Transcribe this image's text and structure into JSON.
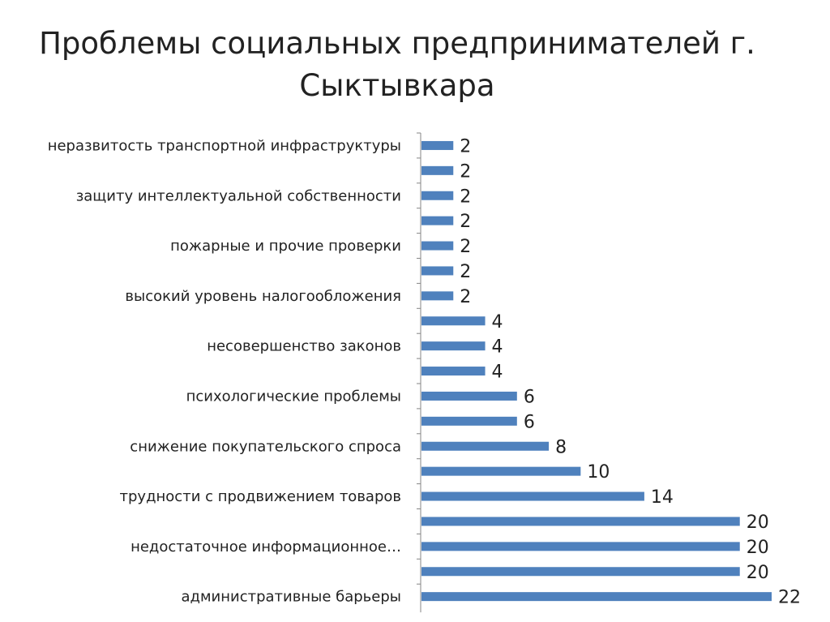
{
  "slide": {
    "title_line1": "Проблемы социальных предпринимателей г.",
    "title_line2": "Сыктывкара"
  },
  "chart_data": {
    "type": "bar",
    "orientation": "horizontal",
    "title": "Проблемы социальных предпринимателей г. Сыктывкара",
    "xlabel": "",
    "ylabel": "",
    "categories": [
      "неразвитость транспортной инфраструктуры",
      "",
      "защиту интеллектуальной собственности",
      "",
      "пожарные и прочие проверки",
      "",
      "высокий уровень налогообложения",
      "",
      "несовершенство законов",
      "",
      "психологические проблемы",
      "",
      "снижение покупательского спроса",
      "",
      "трудности с продвижением товаров",
      "",
      "недостаточное информационное…",
      "",
      "административные барьеры"
    ],
    "values": [
      2,
      2,
      2,
      2,
      2,
      2,
      2,
      4,
      4,
      4,
      6,
      6,
      8,
      10,
      14,
      20,
      20,
      20,
      22
    ],
    "xlim": [
      0,
      22
    ],
    "grid": false,
    "legend": "none",
    "data_labels": true,
    "bar_color": "#4F81BD",
    "axis_color": "#868686"
  }
}
